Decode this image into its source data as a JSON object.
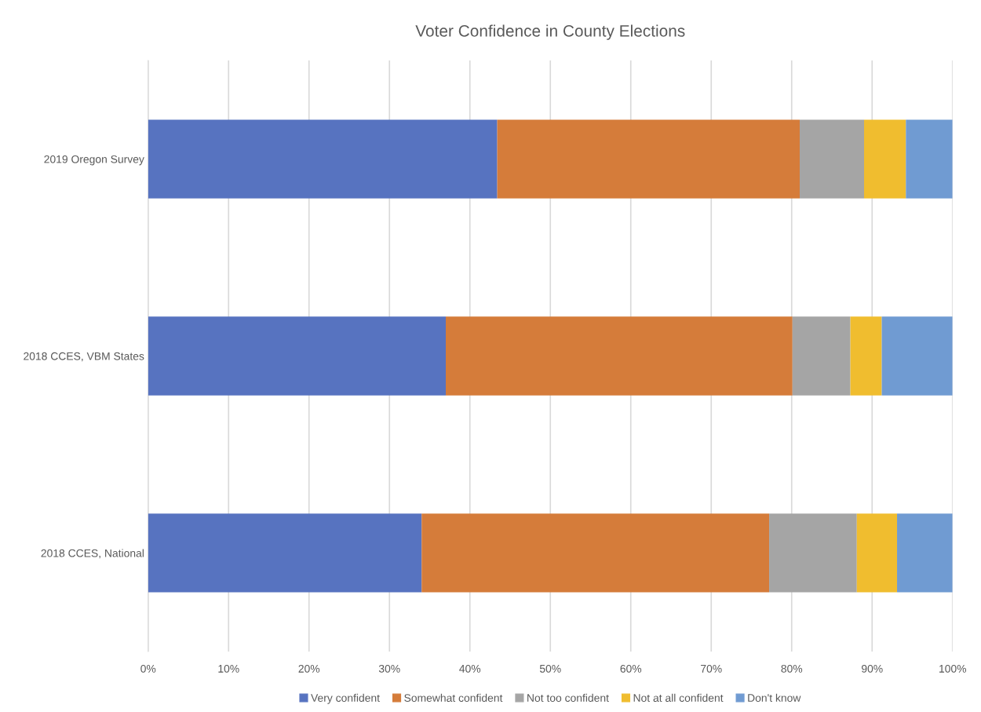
{
  "chart_data": {
    "type": "bar",
    "orientation": "horizontal",
    "stacked": true,
    "title": "Voter Confidence in County Elections",
    "categories": [
      "2019 Oregon Survey",
      "2018 CCES, VBM States",
      "2018 CCES, National"
    ],
    "series": [
      {
        "name": "Very confident",
        "color": "#5773c0",
        "values": [
          43.4,
          37.0,
          34.0
        ]
      },
      {
        "name": "Somewhat confident",
        "color": "#d57c3a",
        "values": [
          37.6,
          43.1,
          43.2
        ]
      },
      {
        "name": "Not too confident",
        "color": "#a5a5a5",
        "values": [
          8.0,
          7.2,
          10.9
        ]
      },
      {
        "name": "Not at all confident",
        "color": "#f0bd2f",
        "values": [
          5.2,
          3.9,
          5.0
        ]
      },
      {
        "name": "Don't know",
        "color": "#709bd2",
        "values": [
          5.8,
          8.8,
          6.9
        ]
      }
    ],
    "xlim": [
      0,
      100
    ],
    "xticks": [
      {
        "value": 0,
        "label": "0%"
      },
      {
        "value": 10,
        "label": "10%"
      },
      {
        "value": 20,
        "label": "20%"
      },
      {
        "value": 30,
        "label": "30%"
      },
      {
        "value": 40,
        "label": "40%"
      },
      {
        "value": 50,
        "label": "50%"
      },
      {
        "value": 60,
        "label": "60%"
      },
      {
        "value": 70,
        "label": "70%"
      },
      {
        "value": 80,
        "label": "80%"
      },
      {
        "value": 90,
        "label": "90%"
      },
      {
        "value": 100,
        "label": "100%"
      }
    ],
    "grid": "x",
    "legend": "bottom"
  }
}
